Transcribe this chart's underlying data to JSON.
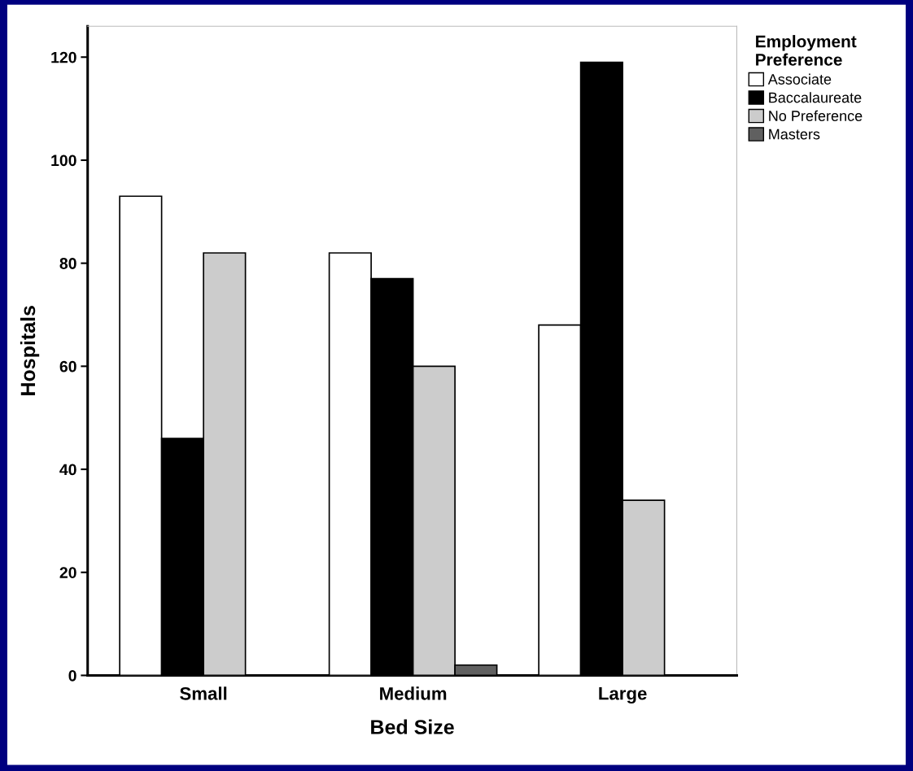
{
  "chart_data": {
    "type": "bar",
    "xlabel": "Bed Size",
    "ylabel": "Hospitals",
    "legend_title": "Employment Preference",
    "categories": [
      "Small",
      "Medium",
      "Large"
    ],
    "series": [
      {
        "name": "Associate",
        "color": "#ffffff",
        "values": [
          93,
          82,
          68
        ]
      },
      {
        "name": "Baccalaureate",
        "color": "#000000",
        "values": [
          46,
          77,
          119
        ]
      },
      {
        "name": "No Preference",
        "color": "#cccccc",
        "values": [
          82,
          60,
          34
        ]
      },
      {
        "name": "Masters",
        "color": "#606060",
        "values": [
          null,
          2,
          null
        ]
      }
    ],
    "ylim": [
      0,
      126
    ],
    "yticks": [
      0,
      20,
      40,
      60,
      80,
      100,
      120
    ],
    "grid": false,
    "legend": "right"
  }
}
